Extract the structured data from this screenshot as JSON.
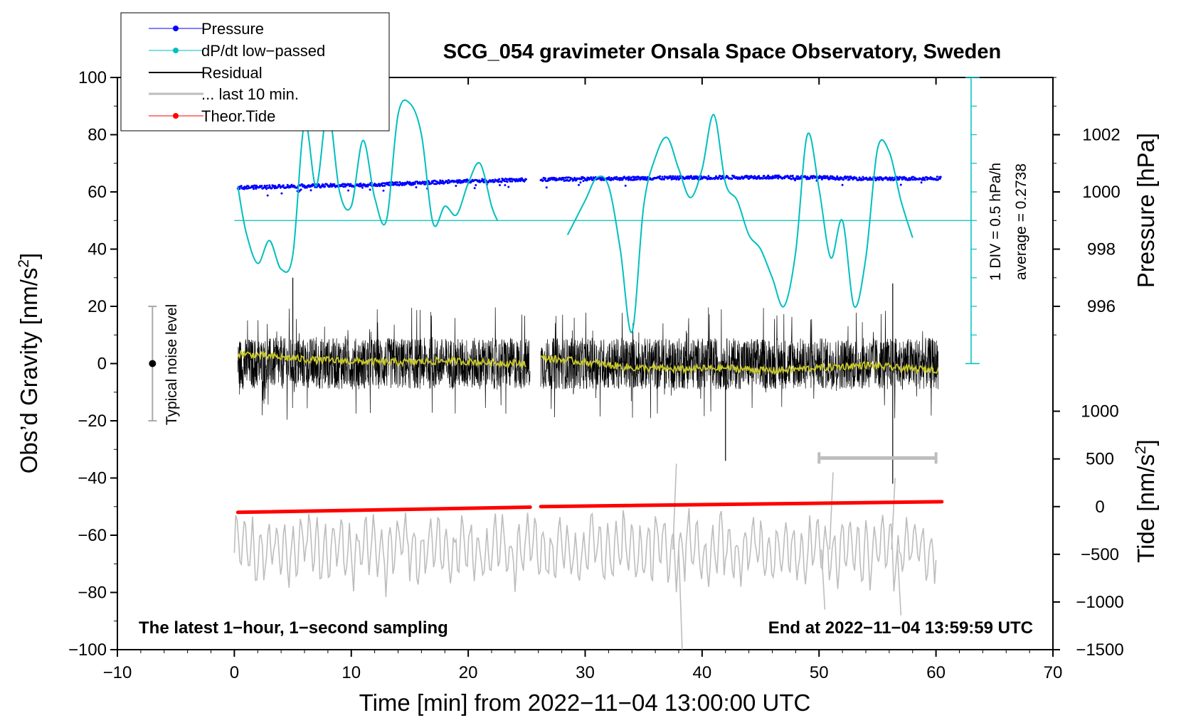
{
  "chart_data": {
    "type": "line",
    "title": "SCG_054 gravimeter Onsala Space Observatory, Sweden",
    "xlabel": "Time [min] from 2022−11−04 13:00:00 UTC",
    "ylabel": "Obs’d Gravity [nm/s²]",
    "ylabel_left": "Obs’d Gravity [nm/s",
    "y2label": "Pressure [hPa]",
    "y3label_base": "Tide [nm/s",
    "superscript": "2",
    "xlim": [
      -10,
      70
    ],
    "ylim": [
      -100,
      100
    ],
    "x_ticks": [
      -10,
      0,
      10,
      20,
      30,
      40,
      50,
      60,
      70
    ],
    "x_tick_labels": [
      "−10",
      "0",
      "10",
      "20",
      "30",
      "40",
      "50",
      "60",
      "70"
    ],
    "y_ticks": [
      -100,
      -80,
      -60,
      -40,
      -20,
      0,
      20,
      40,
      60,
      80,
      100
    ],
    "y_tick_labels": [
      "−100",
      "−80",
      "−60",
      "−40",
      "−20",
      "0",
      "20",
      "40",
      "60",
      "80",
      "100"
    ],
    "pressure_axis": {
      "ticks": [
        996,
        998,
        1000,
        1002
      ],
      "tick_labels": [
        "996",
        "998",
        "1000",
        "1002"
      ],
      "obs_value_at_996": 20,
      "obs_units_per_hpa": 10
    },
    "tide_axis": {
      "ticks": [
        -1500,
        -1000,
        -500,
        0,
        500,
        1000
      ],
      "tick_labels": [
        "−1500",
        "−1000",
        "−500",
        "0",
        "500",
        "1000"
      ],
      "obs_value_at_zero": -50,
      "obs_units_per_500": 16.67
    },
    "dpdt_scale": {
      "label_div": "1 DIV = 0.5 hPa/h",
      "label_avg": "average = 0.2738",
      "axis_x": 63,
      "y_range": [
        0,
        100
      ],
      "baseline": 50
    },
    "noise_bar": {
      "x": -7,
      "center": 0,
      "low": -20,
      "high": 20,
      "label": "Typical noise level"
    },
    "last10_bar": {
      "x_start": 50,
      "x_end": 60,
      "y": -33
    },
    "legend": [
      {
        "label": "Pressure",
        "color": "#0000ff",
        "marker": "dot"
      },
      {
        "label": "dP/dt low−passed",
        "color": "#00bfbf",
        "marker": "dot"
      },
      {
        "label": "Residual",
        "color": "#000000",
        "marker": "line"
      },
      {
        "label": "... last 10 min.",
        "color": "#bdbdbd",
        "marker": "line"
      },
      {
        "label": "Theor.Tide",
        "color": "#ff0000",
        "marker": "dot"
      }
    ],
    "note_left": "The latest 1−hour, 1−second sampling",
    "note_right": "End at 2022−11−04 13:59:59 UTC",
    "series": [
      {
        "name": "Pressure",
        "color": "#0000ff",
        "segments": [
          {
            "x": [
              0.3,
              5,
              10,
              15,
              20,
              25
            ],
            "y": [
              61.5,
              62.0,
              62.3,
              63.0,
              63.8,
              64.2
            ]
          },
          {
            "x": [
              26.2,
              30,
              35,
              40,
              45,
              50,
              55,
              60.4
            ],
            "y": [
              64.3,
              64.6,
              64.8,
              65.0,
              65.2,
              65.0,
              64.6,
              64.8
            ]
          }
        ]
      },
      {
        "name": "dP/dt low−passed",
        "color": "#00bfbf",
        "segments": [
          {
            "x": [
              0.3,
              1,
              2,
              3,
              4,
              5,
              6,
              7,
              8,
              9,
              10,
              11,
              12,
              13,
              14,
              15,
              16,
              17,
              18,
              19,
              20,
              21,
              22,
              22.5
            ],
            "y": [
              62,
              46,
              35,
              43,
              33,
              38,
              84,
              62,
              89,
              60,
              55,
              78,
              58,
              50,
              87,
              91,
              80,
              49,
              55,
              52,
              63,
              70,
              55,
              50
            ]
          },
          {
            "x": [
              28.5,
              30,
              31,
              32,
              33,
              34,
              35,
              36,
              37,
              38,
              39,
              40,
              41,
              42,
              43,
              44,
              45,
              46,
              47,
              48,
              49,
              50,
              51,
              52,
              53,
              54,
              55,
              56,
              57,
              58
            ],
            "y": [
              45,
              57,
              65,
              62,
              40,
              11,
              55,
              72,
              79,
              68,
              58,
              68,
              87,
              63,
              57,
              45,
              40,
              30,
              20,
              39,
              80,
              61,
              37,
              50,
              20,
              37,
              75,
              74,
              57,
              44
            ]
          }
        ]
      },
      {
        "name": "Residual",
        "color": "#000000",
        "segments": [
          {
            "x_start": 0.3,
            "x_end": 25.3,
            "amplitude": 9,
            "spike_max": 30,
            "spike_min": -26
          },
          {
            "x_start": 26.2,
            "x_end": 60.2,
            "amplitude": 9,
            "spike_max": 29,
            "spike_min": -34
          }
        ]
      },
      {
        "name": "Residual smoothed",
        "color": "#c8c82a",
        "segments": [
          {
            "x": [
              0.3,
              3,
              6,
              9,
              12,
              15,
              18,
              21,
              25
            ],
            "y": [
              3.5,
              2.5,
              1.5,
              1.0,
              0.5,
              0.5,
              1.0,
              0.5,
              0.0
            ]
          },
          {
            "x": [
              26.2,
              30,
              34,
              38,
              42,
              46,
              50,
              54,
              58,
              60.2
            ],
            "y": [
              2.0,
              0.5,
              -1.5,
              -2.0,
              -1.5,
              -2.5,
              -1.5,
              -0.5,
              -2.0,
              -2.0
            ]
          }
        ]
      },
      {
        "name": "... last 10 min.",
        "color": "#bdbdbd",
        "x_start": 0,
        "x_end": 60,
        "center": -65,
        "amplitude": 10,
        "peaks": [
          {
            "x": 37.8,
            "y": -35
          },
          {
            "x": 38.3,
            "y": -100
          },
          {
            "x": 51.2,
            "y": -38
          },
          {
            "x": 50.5,
            "y": -86
          },
          {
            "x": 56.5,
            "y": -40
          },
          {
            "x": 57.0,
            "y": -88
          }
        ]
      },
      {
        "name": "Theor.Tide",
        "color": "#ff0000",
        "segments": [
          {
            "x": [
              0.3,
              25.3
            ],
            "y": [
              -52.0,
              -50.2
            ]
          },
          {
            "x": [
              26.2,
              60.5
            ],
            "y": [
              -50.0,
              -48.3
            ]
          }
        ]
      }
    ]
  }
}
